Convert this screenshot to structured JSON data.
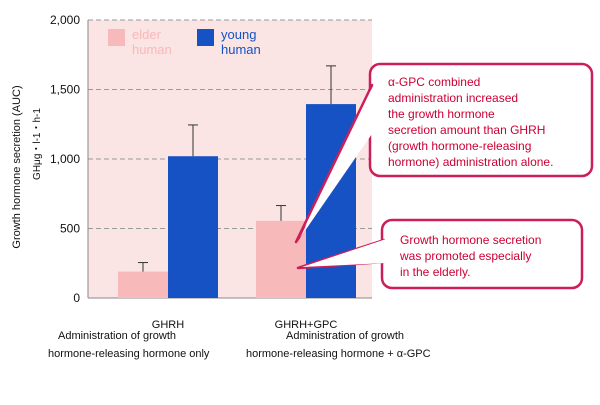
{
  "chart_data": {
    "type": "bar",
    "ylabel": "Growth hormone secretion (AUC)",
    "ylabel_unit": "GHμg・l-1・h-1",
    "ylim": [
      0,
      2000
    ],
    "yticks": [
      "0",
      "500",
      "1,000",
      "1,500",
      "2,000"
    ],
    "grid": true,
    "legend_position": "top-left",
    "categories": [
      "GHRH",
      "GHRH+GPC"
    ],
    "category_descriptions": [
      [
        "Administration of growth",
        "hormone-releasing hormone only"
      ],
      [
        "Administration of growth",
        "hormone-releasing hormone + α-GPC"
      ]
    ],
    "series": [
      {
        "name": "elder human",
        "legend_lines": [
          "elder",
          "human"
        ],
        "color": "#f7b9b9",
        "values": [
          190,
          555
        ],
        "errors": [
          65,
          110
        ]
      },
      {
        "name": "young human",
        "legend_lines": [
          "young",
          "human"
        ],
        "color": "#1652c3",
        "values": [
          1020,
          1395
        ],
        "errors": [
          225,
          275
        ]
      }
    ],
    "annotations": [
      {
        "lines": [
          "α-GPC combined",
          "administration increased",
          "the growth hormone",
          "secretion amount than GHRH",
          "(growth hormone-releasing",
          "hormone) administration alone."
        ]
      },
      {
        "lines": [
          "Growth hormone secretion",
          "was promoted especially",
          "in the elderly."
        ]
      }
    ]
  },
  "colors": {
    "plot_bg": "#fbe4e4",
    "callout_border": "#cc1f5a",
    "callout_text": "#cc0033",
    "legend_text_elder": "#f7b9b9",
    "legend_text_young": "#1652c3",
    "grid": "#9a9a9a"
  }
}
